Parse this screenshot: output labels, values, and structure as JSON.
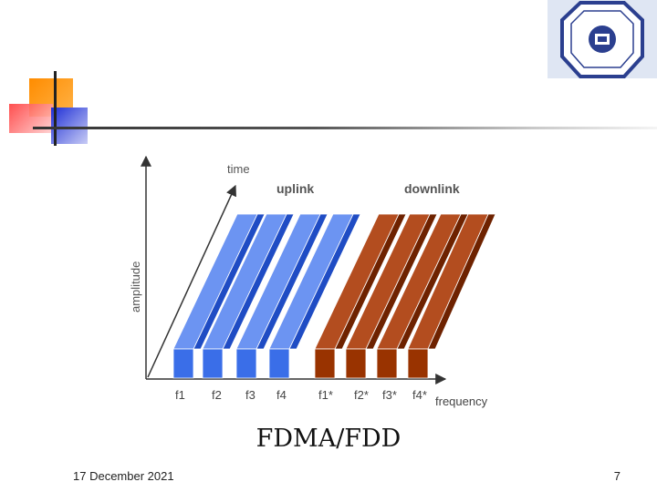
{
  "diagram": {
    "axis_time": "time",
    "axis_amplitude": "amplitude",
    "axis_frequency": "frequency",
    "group_uplink": "uplink",
    "group_downlink": "downlink",
    "uplink_labels": [
      "f1",
      "f2",
      "f3",
      "f4"
    ],
    "downlink_labels": [
      "f1*",
      "f2*",
      "f3*",
      "f4*"
    ],
    "colors": {
      "uplink_front": "#3a6ee8",
      "uplink_side": "#1f4cc4",
      "uplink_top": "#6c94f2",
      "downlink_front": "#993300",
      "downlink_side": "#6e2200",
      "downlink_top": "#b34d1f"
    }
  },
  "caption": "FDMA/FDD",
  "footer": {
    "date": "17 December 2021",
    "page": "7"
  }
}
